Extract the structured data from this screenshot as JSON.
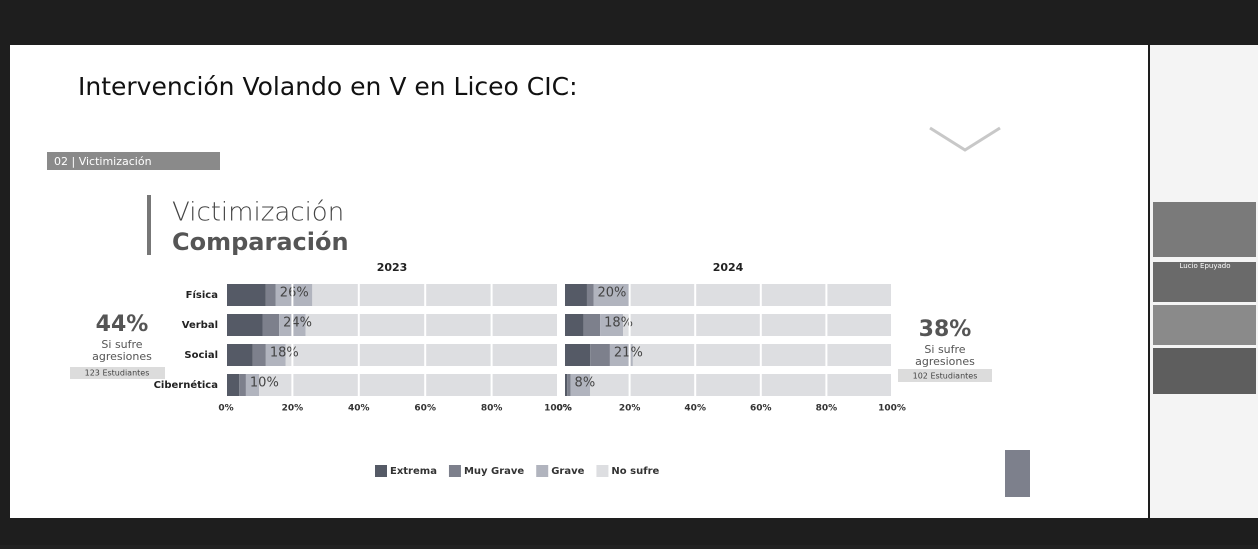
{
  "slide": {
    "title": "Intervención Volando en V en Liceo CIC:",
    "section": "02 | Victimización",
    "heading": "Victimización",
    "subheading": "Comparación",
    "left_stat": {
      "value": "44%",
      "line1": "Si sufre",
      "line2": "agresiones",
      "count": "123 Estudiantes"
    },
    "right_stat": {
      "value": "38%",
      "line1": "Si sufre",
      "line2": "agresiones",
      "count": "102 Estudiantes"
    }
  },
  "participants": [
    "Lucio Epuyado"
  ],
  "chart_data": {
    "type": "bar",
    "orientation": "horizontal",
    "stacked": true,
    "categories": [
      "Física",
      "Verbal",
      "Social",
      "Cibernética"
    ],
    "series": [
      {
        "name": "Extrema",
        "color": "#555a66"
      },
      {
        "name": "Muy Grave",
        "color": "#7d808c"
      },
      {
        "name": "Grave",
        "color": "#b1b4be"
      },
      {
        "name": "No sufre",
        "color": "#dddee1"
      }
    ],
    "xlim": [
      0,
      100
    ],
    "xticks": [
      {
        "value": 0,
        "label": "0%"
      },
      {
        "value": 20,
        "label": "20%"
      },
      {
        "value": 40,
        "label": "40%"
      },
      {
        "value": 60,
        "label": "60%"
      },
      {
        "value": 80,
        "label": "80%"
      },
      {
        "value": 100,
        "label": "100%"
      }
    ],
    "grid": true,
    "panels": [
      {
        "title": "2023",
        "values": [
          [
            12,
            11,
            8,
            4
          ],
          [
            3,
            5,
            4,
            2
          ],
          [
            11,
            8,
            6,
            4
          ],
          [
            74,
            76,
            82,
            90
          ]
        ],
        "sum_labels": [
          "26%",
          "24%",
          "18%",
          "10%"
        ]
      },
      {
        "title": "2024",
        "values": [
          [
            7,
            6,
            8,
            1
          ],
          [
            2,
            5,
            6,
            1
          ],
          [
            11,
            7,
            7,
            6
          ],
          [
            80,
            82,
            79,
            92
          ]
        ],
        "sum_labels": [
          "20%",
          "18%",
          "21%",
          "8%"
        ]
      }
    ]
  }
}
